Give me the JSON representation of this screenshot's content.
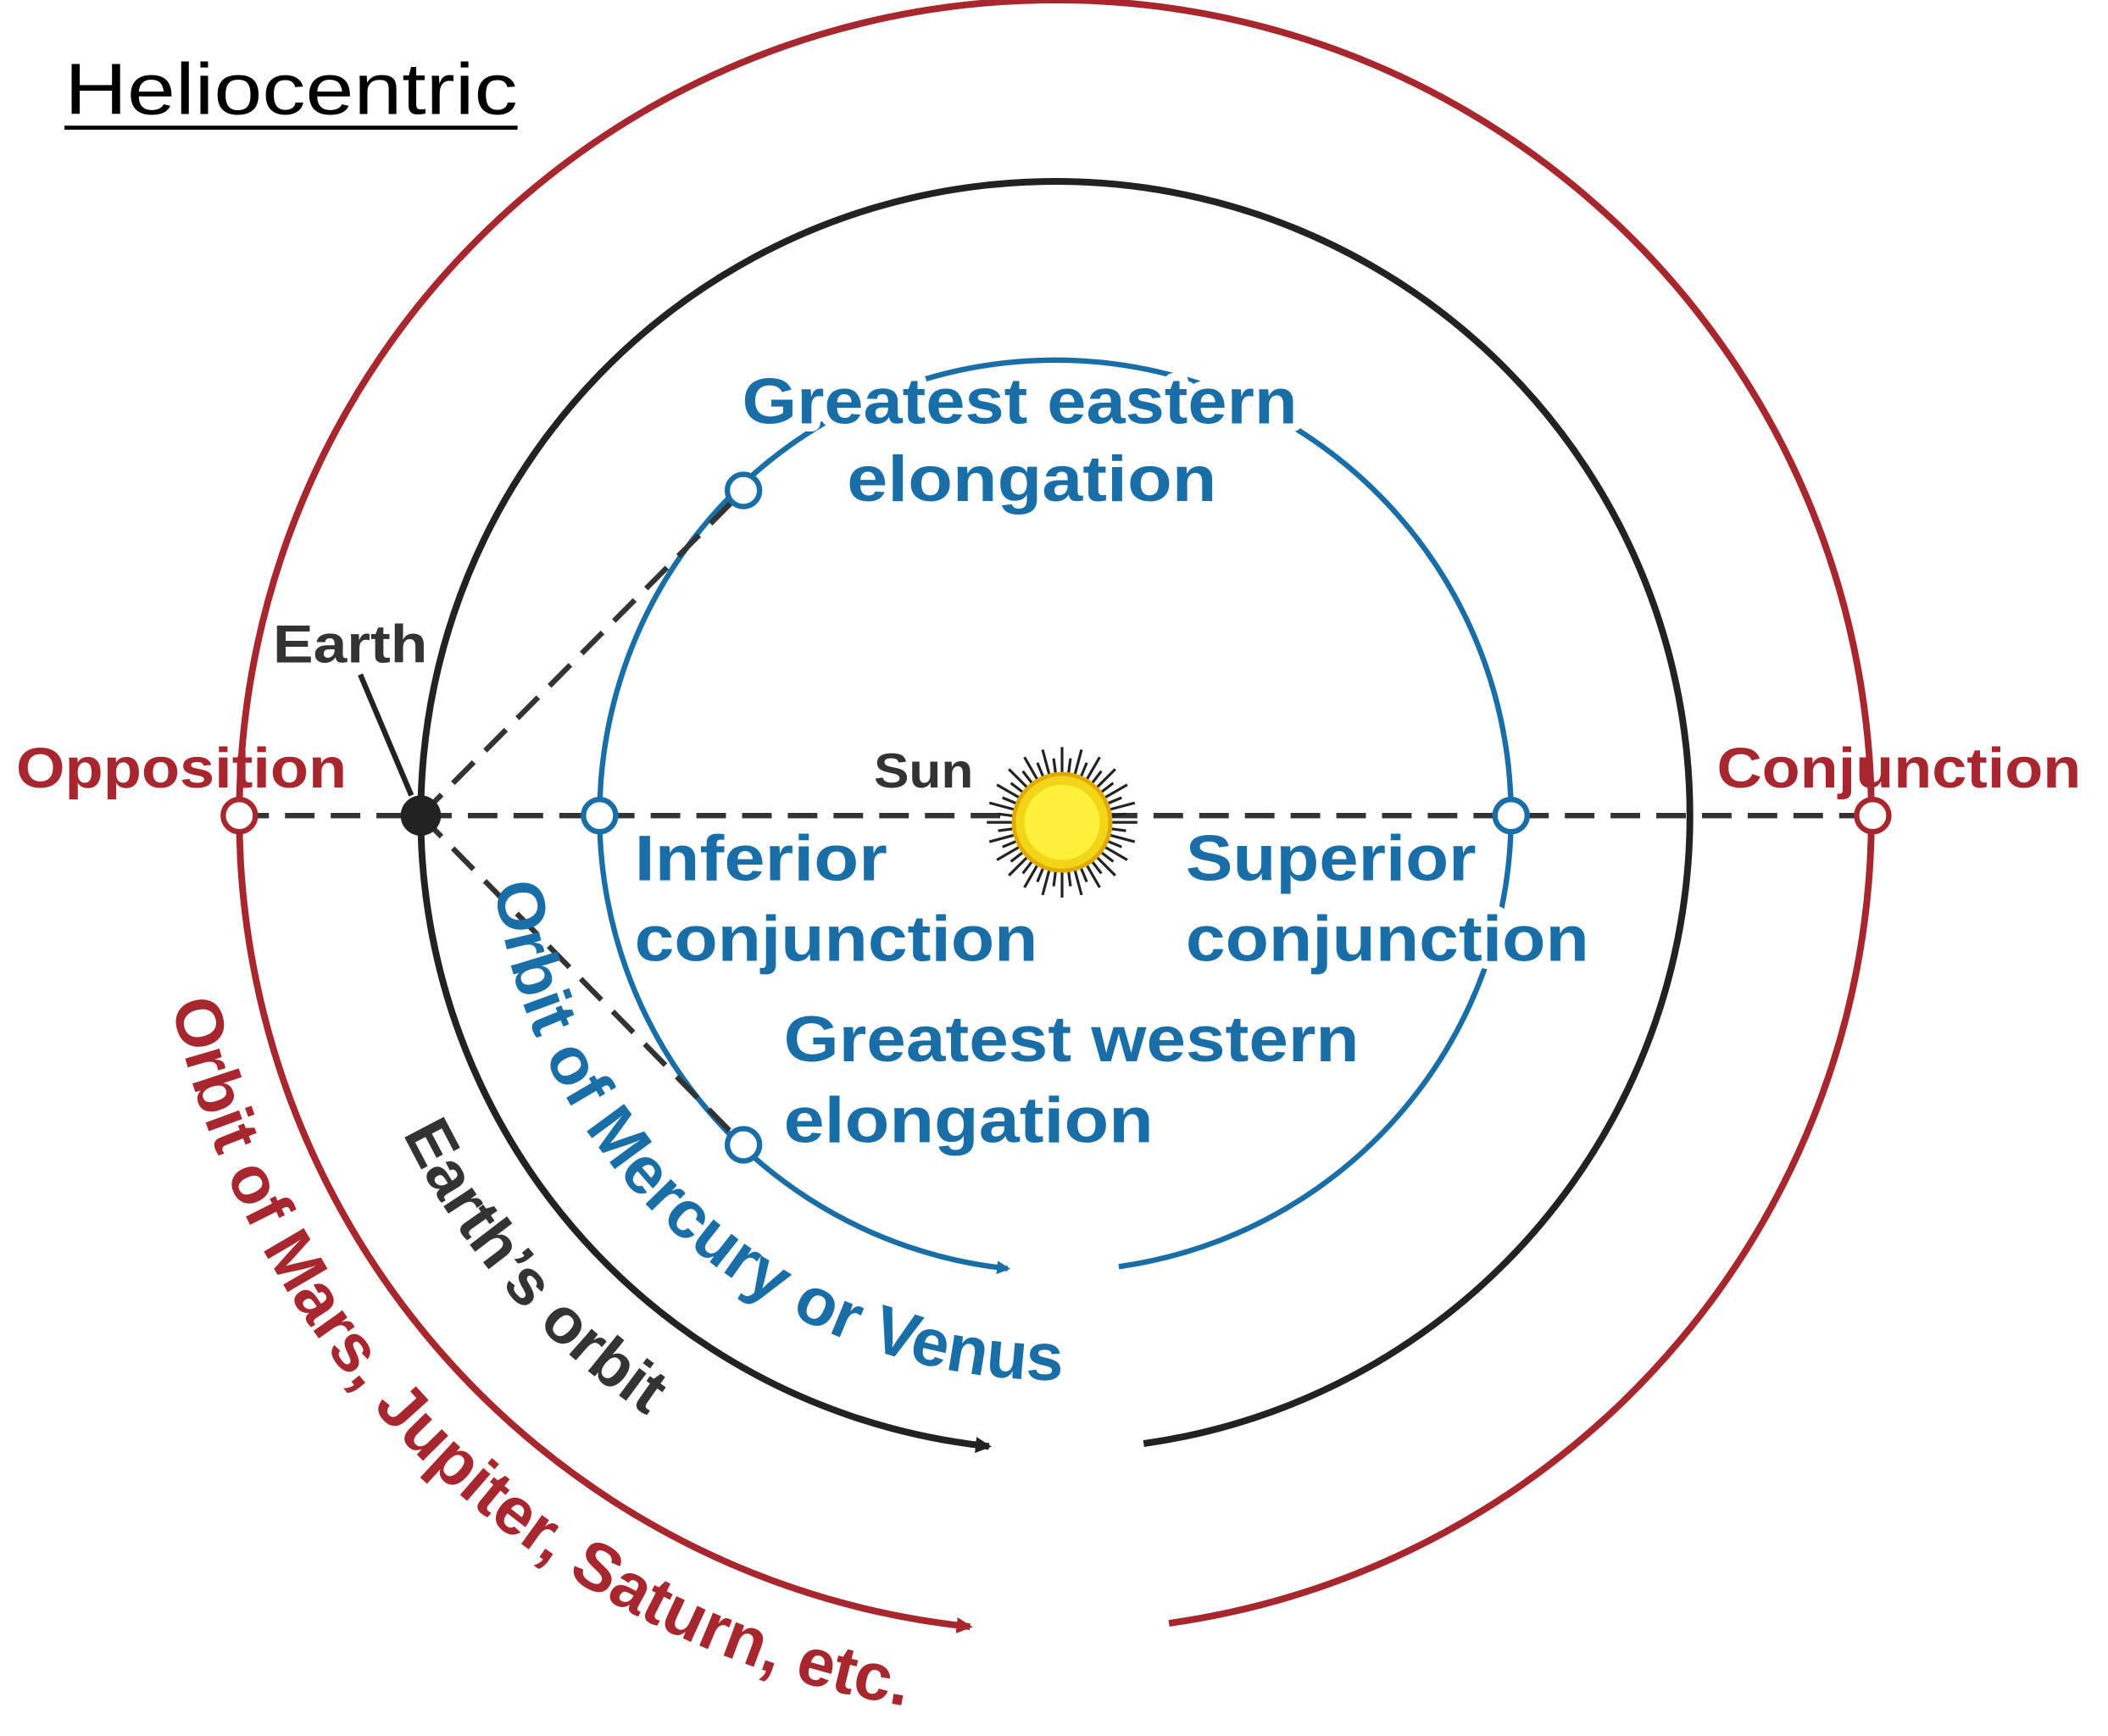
{
  "title": "Heliocentric",
  "labels": {
    "earth": "Earth",
    "sun": "Sun",
    "opposition": "Opposition",
    "conjunction": "Conjunction",
    "inferior": [
      "Inferior",
      "conjunction"
    ],
    "superior": [
      "Superior",
      "conjunction"
    ],
    "eastern": [
      "Greatest eastern",
      "elongation"
    ],
    "western": [
      "Greatest western",
      "elongation"
    ]
  },
  "orbits": {
    "inner": "Orbit of Mercury or Venus",
    "earth": "Earth’s orbit",
    "outer": "Orbit of Mars, Jupiter, Saturn, etc."
  }
}
